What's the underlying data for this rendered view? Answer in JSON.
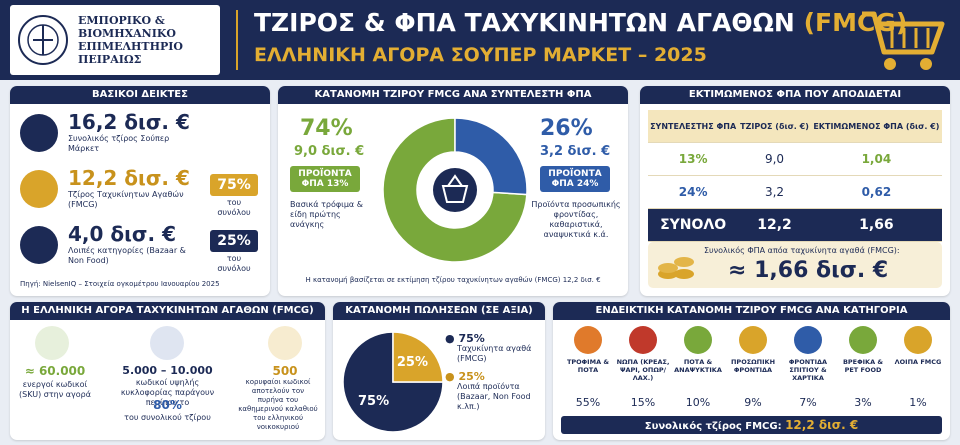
{
  "header": {
    "logo_lines": [
      "ΕΜΠΟΡΙΚΟ &",
      "ΒΙΟΜΗΧΑΝΙΚΟ",
      "ΕΠΙΜΕΛΗΤΗΡΙΟ",
      "ΠΕΙΡΑΙΩΣ"
    ],
    "title": "ΤΖΙΡΟΣ & ΦΠΑ ΤΑΧΥΚΙΝΗΤΩΝ ΑΓΑΘΩΝ",
    "title_highlight": "(FMCG)",
    "subtitle": "ΕΛΛΗΝΙΚΗ ΑΓΟΡΑ ΣΟΥΠΕΡ ΜΑΡΚΕΤ – 2025"
  },
  "kpis": {
    "title": "ΒΑΣΙΚΟΙ ΔΕΙΚΤΕΣ",
    "items": [
      {
        "value": "16,2 δισ. €",
        "label": "Συνολικός τζίρος Σούπερ Μάρκετ"
      },
      {
        "value": "12,2 δισ. €",
        "label": "Τζίρος Ταχυκίνητων Αγαθών (FMCG)",
        "share": "75%",
        "share_note": "του συνόλου"
      },
      {
        "value": "4,0 δισ. €",
        "label": "Λοιπές κατηγορίες (Bazaar & Non Food)",
        "share": "25%",
        "share_note": "του συνόλου"
      }
    ],
    "source": "Πηγή: NielsenIQ – Στοιχεία ογκομέτρου Ιανουαρίου 2025"
  },
  "vat_split": {
    "type": "pie",
    "title": "ΚΑΤΑΝΟΜΗ ΤΖΙΡΟΥ FMCG ΑΝΑ ΣΥΝΤΕΛΕΣΤΗ ΦΠΑ",
    "values": [
      74,
      26
    ],
    "value_labels": [
      "74%",
      "26%"
    ],
    "colors": [
      "#79a83b",
      "#2f5ca8"
    ],
    "amounts": [
      "9,0 δισ. €",
      "3,2 δισ. €"
    ],
    "badges": [
      [
        "ΠΡΟΪΟΝΤΑ",
        "ΦΠΑ 13%"
      ],
      [
        "ΠΡΟΪΟΝΤΑ",
        "ΦΠΑ 24%"
      ]
    ],
    "notes": [
      "Βασικά τρόφιμα & είδη πρώτης ανάγκης",
      "Προϊόντα προσωπικής φροντίδας, καθαριστικά, αναψυκτικά κ.ά."
    ],
    "footnote": "Η κατανομή βασίζεται σε εκτίμηση τζίρου ταχυκίνητων αγαθών (FMCG) 12,2 δισ. €"
  },
  "vat_table": {
    "title": "ΕΚΤΙΜΩΜΕΝΟΣ ΦΠΑ ΠΟΥ ΑΠΟΔΙΔΕΤΑΙ",
    "header": [
      "ΣΥΝΤΕΛΕΣΤΗΣ ΦΠΑ",
      "ΤΖΙΡΟΣ (δισ. €)",
      "ΕΚΤΙΜΩΜΕΝΟΣ ΦΠΑ (δισ. €)"
    ],
    "rows": [
      [
        "13%",
        "9,0",
        "1,04"
      ],
      [
        "24%",
        "3,2",
        "0,62"
      ]
    ],
    "total": [
      "ΣΥΝΟΛΟ",
      "12,2",
      "1,66"
    ],
    "summary_label": "Συνολικός ΦΠΑ απόα ταχυκίνητα αγαθά (FMCG):",
    "summary_value": "≈ 1,66 δισ. €"
  },
  "market": {
    "title": "Η ΕΛΛΗΝΙΚΗ ΑΓΟΡΑ ΤΑΧΥΚΙΝΗΤΩΝ ΑΓΑΘΩΝ (FMCG)",
    "items": [
      {
        "value": "≈ 60.000",
        "text": "ενεργοί κωδικοί (SKU) στην αγορά"
      },
      {
        "value": "5.000 – 10.000",
        "text": "κωδικοί υψηλής κυκλοφορίας παράγουν περίπου το",
        "value2": "80%",
        "text2": "του συνολικού τζίρου"
      },
      {
        "value": "500",
        "text": "κορυφαίοι κωδικοί αποτελούν τον πυρήνα του καθημερινού καλαθιού του ελληνικού νοικοκυριού"
      }
    ]
  },
  "sales_split": {
    "type": "pie",
    "title": "ΚΑΤΑΝΟΜΗ ΠΩΛΗΣΕΩΝ (ΣΕ ΑΞΙΑ)",
    "values": [
      75,
      25
    ],
    "value_labels": [
      "75%",
      "25%"
    ],
    "colors": [
      "#1c2a55",
      "#d9a42a"
    ],
    "categories": [
      "Ταχυκίνητα αγαθά (FMCG)",
      "Λοιπά προϊόντα (Bazaar, Non Food κ.λπ.)"
    ]
  },
  "categories": {
    "title": "ΕΝΔΕΙΚΤΙΚΗ ΚΑΤΑΝΟΜΗ ΤΖΙΡΟΥ FMCG ΑΝΑ ΚΑΤΗΓΟΡΙΑ",
    "names": [
      "ΤΡΟΦΙΜΑ & ΠΟΤΑ",
      "ΝΩΠΑ (ΚΡΕΑΣ, ΨΑΡΙ, ΟΠΩΡ/ΛΑΧ.)",
      "ΠΟΤΑ & ΑΝΑΨΥΚΤΙΚΑ",
      "ΠΡΟΣΩΠΙΚΗ ΦΡΟΝΤΙΔΑ",
      "ΦΡΟΝΤΙΔΑ ΣΠΙΤΙΟΥ & ΧΑΡΤΙΚΑ",
      "ΒΡΕΦΙΚΑ & PET FOOD",
      "ΛΟΙΠΑ FMCG"
    ],
    "shares": [
      "55%",
      "15%",
      "10%",
      "9%",
      "7%",
      "3%",
      "1%"
    ],
    "total_label": "Συνολικός τζίρος FMCG:",
    "total_value": "12,2 δισ. €"
  }
}
